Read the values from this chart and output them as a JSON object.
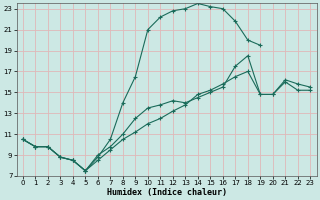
{
  "xlabel": "Humidex (Indice chaleur)",
  "bg_color": "#cce8e4",
  "grid_color": "#e0b8b8",
  "line_color": "#1a6b5a",
  "xlim_min": -0.5,
  "xlim_max": 23.5,
  "ylim_min": 7,
  "ylim_max": 23.5,
  "xticks": [
    0,
    1,
    2,
    3,
    4,
    5,
    6,
    7,
    8,
    9,
    10,
    11,
    12,
    13,
    14,
    15,
    16,
    17,
    18,
    19,
    20,
    21,
    22,
    23
  ],
  "yticks": [
    7,
    9,
    11,
    13,
    15,
    17,
    19,
    21,
    23
  ],
  "line_arch_x": [
    0,
    1,
    2,
    3,
    4,
    5,
    6,
    7,
    8,
    9,
    10,
    11,
    12,
    13,
    14,
    15,
    16,
    17,
    18,
    19
  ],
  "line_arch_y": [
    10.5,
    9.8,
    9.8,
    8.8,
    8.5,
    7.5,
    8.8,
    10.5,
    14.0,
    16.5,
    21.0,
    22.2,
    22.8,
    23.0,
    23.5,
    23.2,
    23.0,
    21.8,
    20.0,
    19.5
  ],
  "line_mid_x": [
    0,
    1,
    2,
    3,
    4,
    5,
    6,
    7,
    8,
    9,
    10,
    11,
    12,
    13,
    14,
    15,
    16,
    17,
    18,
    19,
    20,
    21,
    22,
    23
  ],
  "line_mid_y": [
    10.5,
    9.8,
    9.8,
    8.8,
    8.5,
    7.5,
    9.0,
    9.8,
    11.0,
    12.5,
    13.5,
    13.8,
    14.2,
    14.0,
    14.5,
    15.0,
    15.5,
    17.5,
    18.5,
    14.8,
    14.8,
    16.2,
    15.8,
    15.5
  ],
  "line_low_x": [
    0,
    1,
    2,
    3,
    4,
    5,
    6,
    7,
    8,
    9,
    10,
    11,
    12,
    13,
    14,
    15,
    16,
    17,
    18,
    19,
    20,
    21,
    22,
    23
  ],
  "line_low_y": [
    10.5,
    9.8,
    9.8,
    8.8,
    8.5,
    7.5,
    8.5,
    9.5,
    10.5,
    11.2,
    12.0,
    12.5,
    13.2,
    13.8,
    14.8,
    15.2,
    15.8,
    16.5,
    17.0,
    14.8,
    14.8,
    16.0,
    15.2,
    15.2
  ]
}
